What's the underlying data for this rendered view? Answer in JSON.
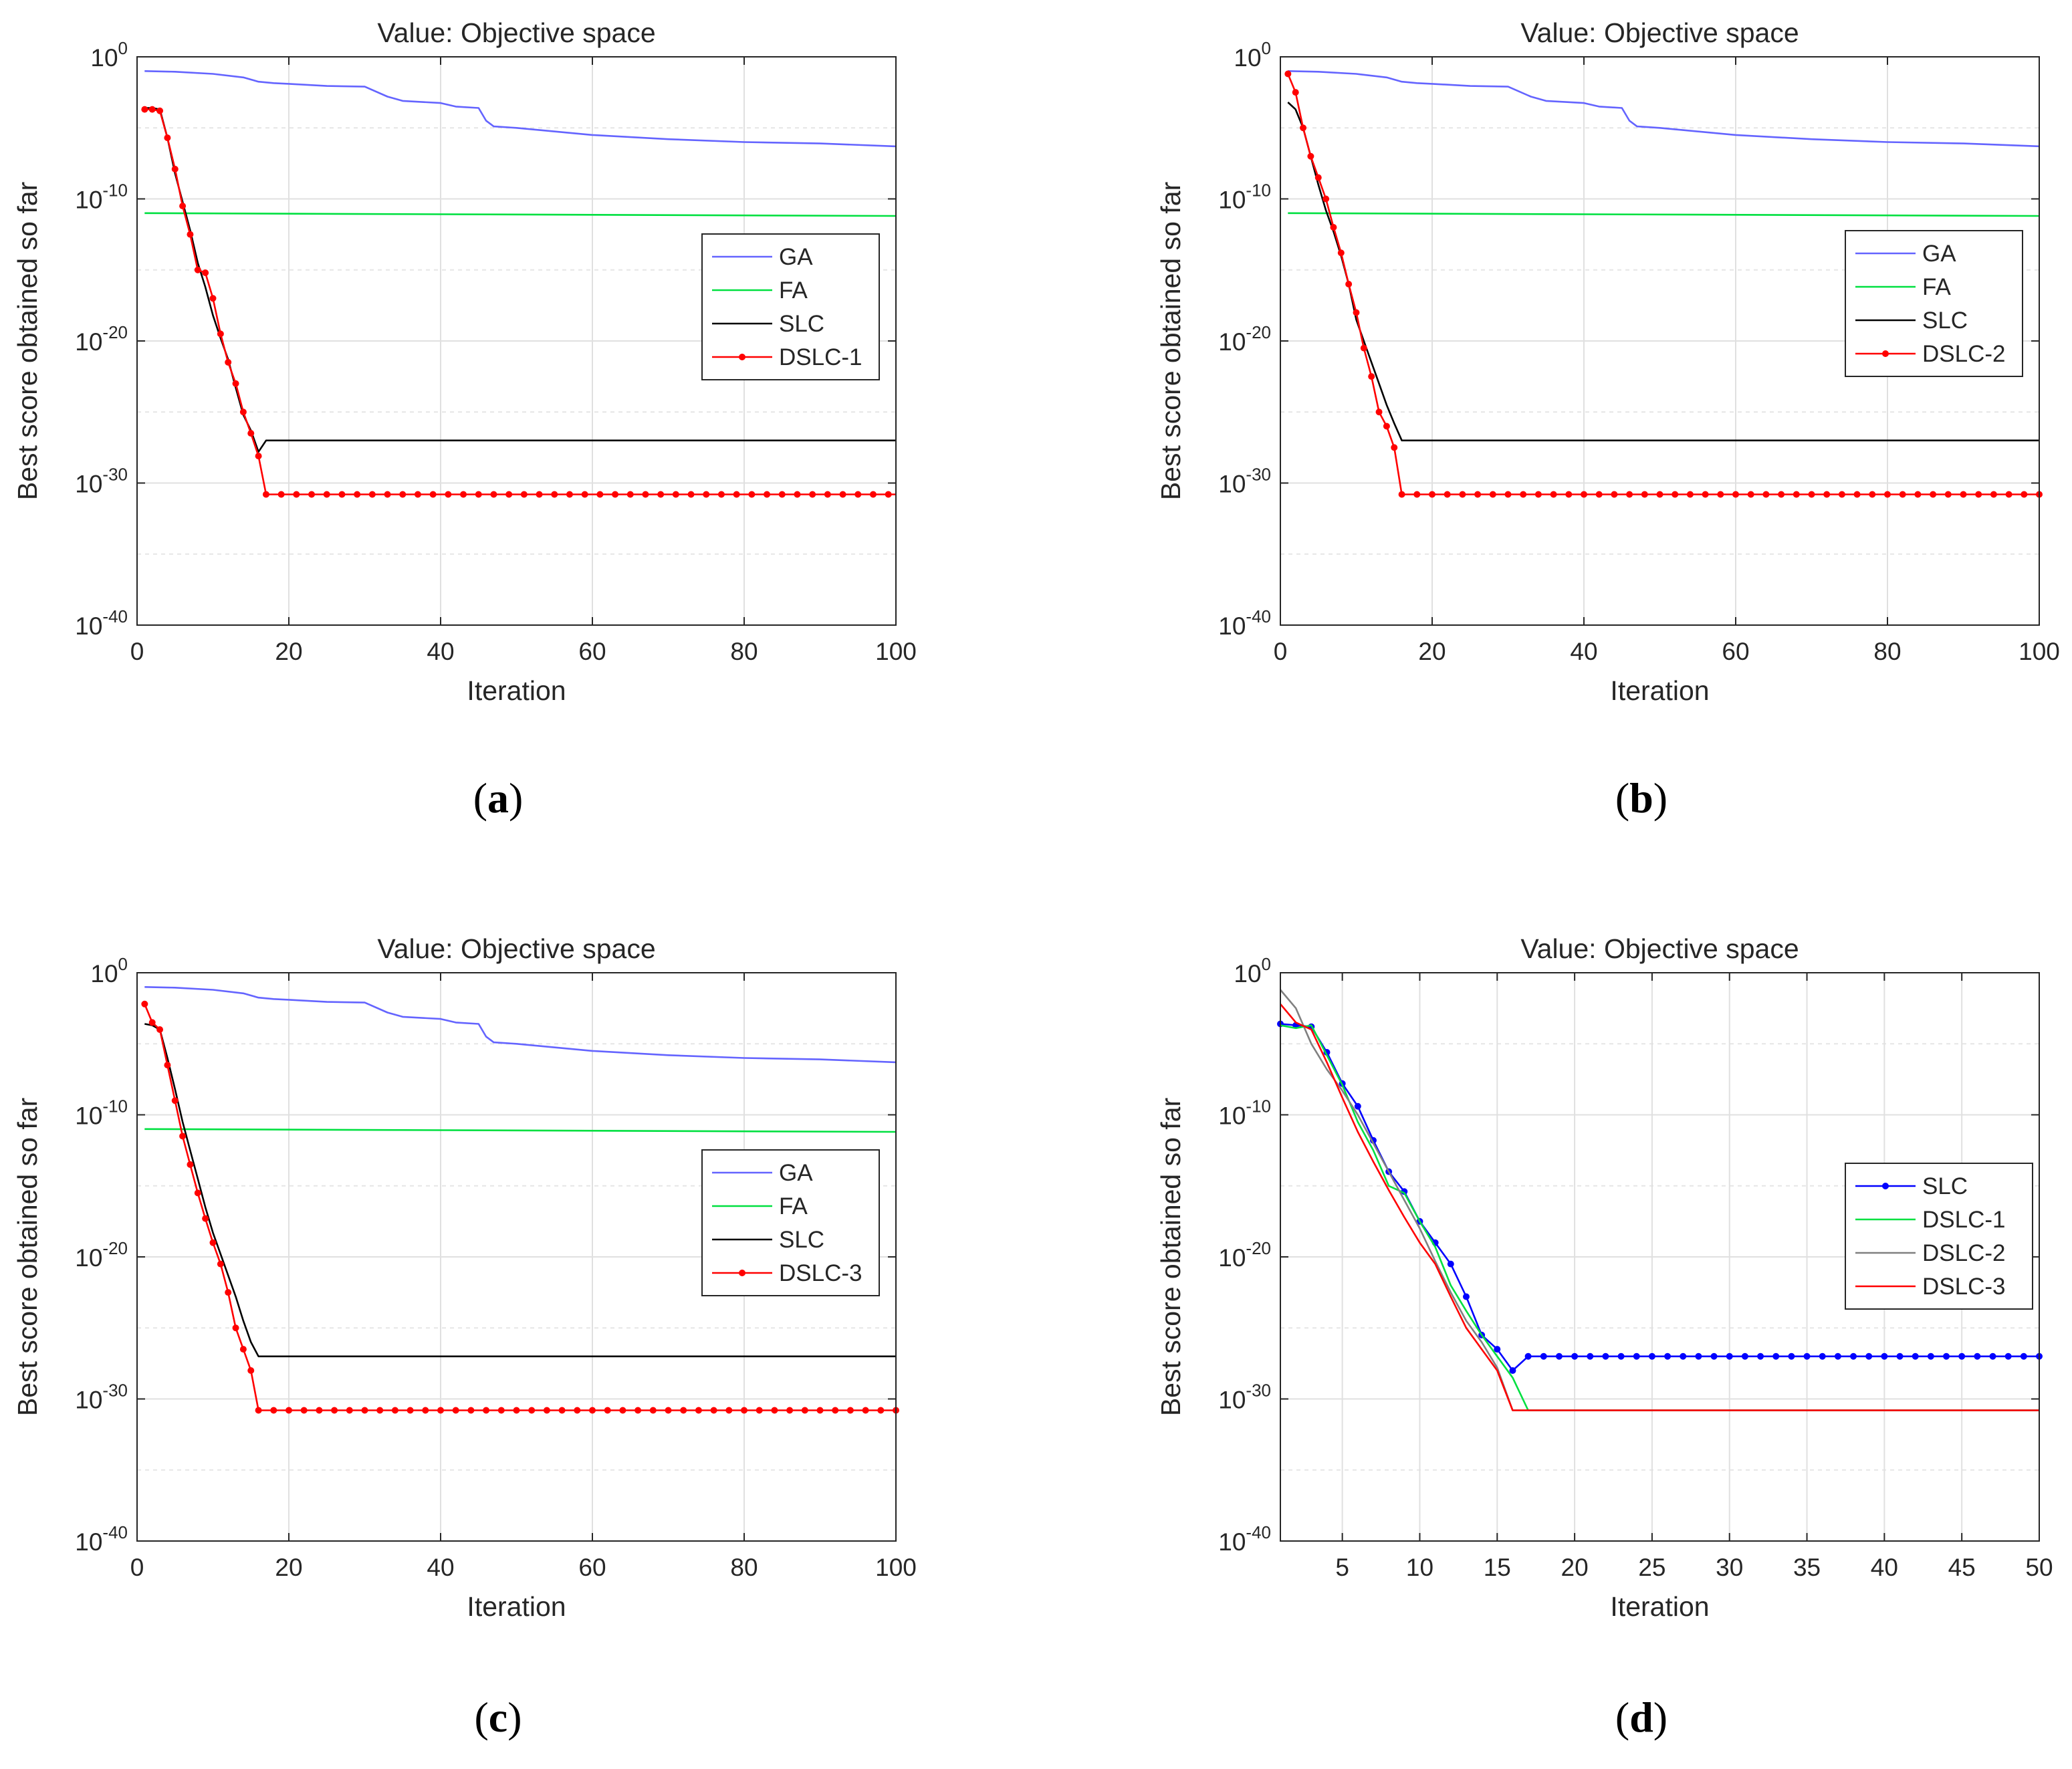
{
  "chart_data": [
    {
      "type": "line",
      "panel_label": "a",
      "title": "Value: Objective space",
      "xlabel": "Iteration",
      "ylabel": "Best score obtained so far",
      "yscale": "log",
      "xlim": [
        0,
        100
      ],
      "ylim_exponent": [
        -40,
        0
      ],
      "xticks": [
        0,
        20,
        40,
        60,
        80,
        100
      ],
      "yticks_exponent": [
        0,
        -10,
        -20,
        -30,
        -40
      ],
      "grid": true,
      "legend_position": "right",
      "series": [
        {
          "name": "GA",
          "color": "#6464ff",
          "marker": "none",
          "x": [
            1,
            5,
            10,
            14,
            16,
            18,
            20,
            25,
            30,
            33,
            35,
            40,
            42,
            45,
            46,
            47,
            50,
            60,
            70,
            80,
            90,
            100
          ],
          "log10_y": [
            -1,
            -1.05,
            -1.2,
            -1.45,
            -1.75,
            -1.85,
            -1.9,
            -2.05,
            -2.1,
            -2.8,
            -3.1,
            -3.25,
            -3.5,
            -3.6,
            -4.5,
            -4.9,
            -5.0,
            -5.5,
            -5.8,
            -6.0,
            -6.1,
            -6.3
          ]
        },
        {
          "name": "FA",
          "color": "#00e040",
          "marker": "none",
          "x": [
            1,
            100
          ],
          "log10_y": [
            -11,
            -11.2
          ]
        },
        {
          "name": "SLC",
          "color": "#000000",
          "marker": "none",
          "x": [
            1,
            2,
            3,
            4,
            5,
            6,
            7,
            8,
            9,
            10,
            11,
            12,
            13,
            14,
            15,
            16,
            17,
            100
          ],
          "log10_y": [
            -3.6,
            -3.6,
            -3.7,
            -5.7,
            -8.2,
            -10.2,
            -12.2,
            -14.5,
            -16.2,
            -18.2,
            -19.8,
            -21.3,
            -23.3,
            -25.2,
            -26.3,
            -27.8,
            -27.0,
            -27.0
          ]
        },
        {
          "name": "DSLC-1",
          "color": "#ff0000",
          "marker": "dot",
          "x": [
            1,
            2,
            3,
            4,
            5,
            6,
            7,
            8,
            9,
            10,
            11,
            12,
            13,
            14,
            15,
            16,
            17,
            100
          ],
          "log10_y": [
            -3.7,
            -3.7,
            -3.8,
            -5.7,
            -7.9,
            -10.5,
            -12.5,
            -15.0,
            -15.2,
            -17.0,
            -19.5,
            -21.5,
            -23.0,
            -25.0,
            -26.5,
            -28.1,
            -30.8,
            -30.8
          ]
        }
      ]
    },
    {
      "type": "line",
      "panel_label": "b",
      "title": "Value: Objective space",
      "xlabel": "Iteration",
      "ylabel": "Best score obtained so far",
      "yscale": "log",
      "xlim": [
        0,
        100
      ],
      "ylim_exponent": [
        -40,
        0
      ],
      "xticks": [
        0,
        20,
        40,
        60,
        80,
        100
      ],
      "yticks_exponent": [
        0,
        -10,
        -20,
        -30,
        -40
      ],
      "grid": true,
      "legend_position": "right",
      "series": [
        {
          "name": "GA",
          "color": "#6464ff",
          "marker": "none",
          "x": [
            1,
            5,
            10,
            14,
            16,
            18,
            20,
            25,
            30,
            33,
            35,
            40,
            42,
            45,
            46,
            47,
            50,
            60,
            70,
            80,
            90,
            100
          ],
          "log10_y": [
            -1,
            -1.05,
            -1.2,
            -1.45,
            -1.75,
            -1.85,
            -1.9,
            -2.05,
            -2.1,
            -2.8,
            -3.1,
            -3.25,
            -3.5,
            -3.6,
            -4.5,
            -4.9,
            -5.0,
            -5.5,
            -5.8,
            -6.0,
            -6.1,
            -6.3
          ]
        },
        {
          "name": "FA",
          "color": "#00e040",
          "marker": "none",
          "x": [
            1,
            100
          ],
          "log10_y": [
            -11,
            -11.2
          ]
        },
        {
          "name": "SLC",
          "color": "#000000",
          "marker": "none",
          "x": [
            1,
            2,
            3,
            4,
            5,
            6,
            7,
            8,
            9,
            10,
            11,
            12,
            13,
            14,
            15,
            16,
            17,
            100
          ],
          "log10_y": [
            -3.2,
            -3.7,
            -5.0,
            -7.0,
            -9.0,
            -10.8,
            -12.3,
            -14.0,
            -16.0,
            -18.5,
            -20.0,
            -21.5,
            -23.0,
            -24.5,
            -25.8,
            -27.0,
            -27.0,
            -27.0
          ]
        },
        {
          "name": "DSLC-2",
          "color": "#ff0000",
          "marker": "dot",
          "x": [
            1,
            2,
            3,
            4,
            5,
            6,
            7,
            8,
            9,
            10,
            11,
            12,
            13,
            14,
            15,
            16,
            100
          ],
          "log10_y": [
            -1.2,
            -2.5,
            -5.0,
            -7.0,
            -8.5,
            -10.0,
            -12.0,
            -13.8,
            -16.0,
            -18.0,
            -20.5,
            -22.5,
            -25.0,
            -26.0,
            -27.5,
            -30.8,
            -30.8
          ]
        }
      ]
    },
    {
      "type": "line",
      "panel_label": "c",
      "title": "Value: Objective space",
      "xlabel": "Iteration",
      "ylabel": "Best score obtained so far",
      "yscale": "log",
      "xlim": [
        0,
        100
      ],
      "ylim_exponent": [
        -40,
        0
      ],
      "xticks": [
        0,
        20,
        40,
        60,
        80,
        100
      ],
      "yticks_exponent": [
        0,
        -10,
        -20,
        -30,
        -40
      ],
      "grid": true,
      "legend_position": "right",
      "series": [
        {
          "name": "GA",
          "color": "#6464ff",
          "marker": "none",
          "x": [
            1,
            5,
            10,
            14,
            16,
            18,
            20,
            25,
            30,
            33,
            35,
            40,
            42,
            45,
            46,
            47,
            50,
            60,
            70,
            80,
            90,
            100
          ],
          "log10_y": [
            -1,
            -1.05,
            -1.2,
            -1.45,
            -1.75,
            -1.85,
            -1.9,
            -2.05,
            -2.1,
            -2.8,
            -3.1,
            -3.25,
            -3.5,
            -3.6,
            -4.5,
            -4.9,
            -5.0,
            -5.5,
            -5.8,
            -6.0,
            -6.1,
            -6.3
          ]
        },
        {
          "name": "FA",
          "color": "#00e040",
          "marker": "none",
          "x": [
            1,
            100
          ],
          "log10_y": [
            -11,
            -11.2
          ]
        },
        {
          "name": "SLC",
          "color": "#000000",
          "marker": "none",
          "x": [
            1,
            2,
            3,
            4,
            5,
            6,
            7,
            8,
            9,
            10,
            11,
            12,
            13,
            14,
            15,
            16,
            17,
            100
          ],
          "log10_y": [
            -3.6,
            -3.7,
            -4.0,
            -6.0,
            -8.2,
            -10.5,
            -12.5,
            -14.5,
            -16.5,
            -18.3,
            -19.8,
            -21.3,
            -22.8,
            -24.5,
            -26.0,
            -27.0,
            -27.0,
            -27.0
          ]
        },
        {
          "name": "DSLC-3",
          "color": "#ff0000",
          "marker": "dot",
          "x": [
            1,
            2,
            3,
            4,
            5,
            6,
            7,
            8,
            9,
            10,
            11,
            12,
            13,
            14,
            15,
            16,
            100
          ],
          "log10_y": [
            -2.2,
            -3.5,
            -4.0,
            -6.5,
            -9.0,
            -11.5,
            -13.5,
            -15.5,
            -17.3,
            -19.0,
            -20.5,
            -22.5,
            -25.0,
            -26.5,
            -28.0,
            -30.8,
            -30.8
          ]
        }
      ]
    },
    {
      "type": "line",
      "panel_label": "d",
      "title": "Value: Objective space",
      "xlabel": "Iteration",
      "ylabel": "Best score obtained so far",
      "yscale": "log",
      "xlim": [
        1,
        50
      ],
      "ylim_exponent": [
        -40,
        0
      ],
      "xticks": [
        5,
        10,
        15,
        20,
        25,
        30,
        35,
        40,
        45,
        50
      ],
      "yticks_exponent": [
        0,
        -10,
        -20,
        -30,
        -40
      ],
      "grid": true,
      "legend_position": "right",
      "series": [
        {
          "name": "SLC",
          "color": "#0000ff",
          "marker": "dot",
          "x": [
            1,
            2,
            3,
            4,
            5,
            6,
            7,
            8,
            9,
            10,
            11,
            12,
            13,
            14,
            15,
            16,
            17,
            18,
            19,
            20,
            21,
            22,
            23,
            24,
            25,
            26,
            27,
            28,
            29,
            30,
            31,
            32,
            33,
            34,
            35,
            36,
            37,
            38,
            39,
            40,
            41,
            42,
            43,
            44,
            45,
            46,
            47,
            48,
            49,
            50
          ],
          "log10_y": [
            -3.6,
            -3.7,
            -3.8,
            -5.6,
            -7.8,
            -9.4,
            -11.8,
            -14.0,
            -15.4,
            -17.5,
            -19.0,
            -20.5,
            -22.8,
            -25.5,
            -26.5,
            -28.0,
            -27.0,
            -27.0,
            -27.0,
            -27.0,
            -27.0,
            -27.0,
            -27.0,
            -27.0,
            -27.0,
            -27.0,
            -27.0,
            -27.0,
            -27.0,
            -27.0,
            -27.0,
            -27.0,
            -27.0,
            -27.0,
            -27.0,
            -27.0,
            -27.0,
            -27.0,
            -27.0,
            -27.0,
            -27.0,
            -27.0,
            -27.0,
            -27.0,
            -27.0,
            -27.0,
            -27.0,
            -27.0,
            -27.0,
            -27.0
          ]
        },
        {
          "name": "DSLC-1",
          "color": "#00e040",
          "marker": "none",
          "x": [
            1,
            2,
            3,
            4,
            5,
            6,
            7,
            8,
            9,
            10,
            11,
            12,
            13,
            14,
            15,
            16,
            17,
            50
          ],
          "log10_y": [
            -3.7,
            -3.9,
            -3.7,
            -5.8,
            -7.9,
            -10.5,
            -12.5,
            -15.0,
            -15.5,
            -17.5,
            -19.3,
            -22.0,
            -23.8,
            -25.5,
            -27.0,
            -28.5,
            -30.8,
            -30.8
          ]
        },
        {
          "name": "DSLC-2",
          "color": "#808080",
          "marker": "none",
          "x": [
            1,
            2,
            3,
            4,
            5,
            6,
            7,
            8,
            9,
            10,
            11,
            12,
            13,
            14,
            15,
            16,
            50
          ],
          "log10_y": [
            -1.2,
            -2.5,
            -5.0,
            -6.8,
            -8.3,
            -10.0,
            -12.0,
            -14.0,
            -16.0,
            -18.0,
            -20.3,
            -22.5,
            -24.5,
            -26.0,
            -27.8,
            -30.8,
            -30.8
          ]
        },
        {
          "name": "DSLC-3",
          "color": "#ff0000",
          "marker": "none",
          "x": [
            1,
            2,
            3,
            4,
            5,
            6,
            7,
            8,
            9,
            10,
            11,
            12,
            13,
            14,
            15,
            16,
            50
          ],
          "log10_y": [
            -2.2,
            -3.5,
            -4.0,
            -6.3,
            -8.8,
            -11.2,
            -13.3,
            -15.3,
            -17.2,
            -19.0,
            -20.5,
            -22.8,
            -25.0,
            -26.5,
            -28.0,
            -30.8,
            -30.8
          ]
        }
      ]
    }
  ]
}
